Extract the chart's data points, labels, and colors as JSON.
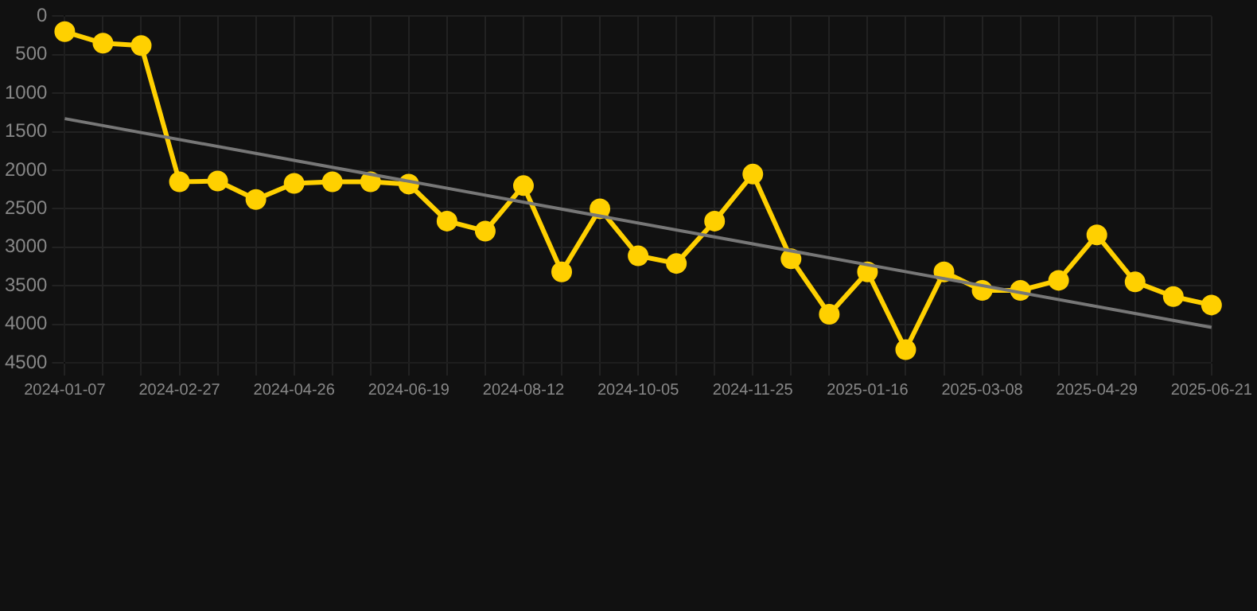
{
  "chart_data": {
    "type": "line",
    "categories": [
      "2024-01-07",
      null,
      null,
      "2024-02-27",
      null,
      null,
      "2024-04-26",
      null,
      null,
      "2024-06-19",
      null,
      null,
      "2024-08-12",
      null,
      null,
      "2024-10-05",
      null,
      null,
      "2024-11-25",
      null,
      null,
      "2025-01-16",
      null,
      null,
      "2025-03-08",
      null,
      null,
      "2025-04-29",
      null,
      null,
      "2025-06-21"
    ],
    "series": [
      {
        "color": "#ffd000",
        "values": [
          200,
          350,
          380,
          2150,
          2140,
          2380,
          2170,
          2150,
          2150,
          2180,
          2660,
          2790,
          2200,
          3320,
          2500,
          3110,
          3210,
          2660,
          2050,
          3150,
          3870,
          3320,
          4330,
          3320,
          3560,
          3560,
          3430,
          2840,
          3450,
          3640,
          3750
        ]
      },
      {
        "type": "line",
        "color": "#777777",
        "marker": "none",
        "values": [
          1330,
          null,
          null,
          null,
          null,
          null,
          null,
          null,
          null,
          null,
          null,
          null,
          null,
          null,
          null,
          null,
          null,
          null,
          null,
          null,
          null,
          null,
          null,
          null,
          null,
          null,
          null,
          null,
          null,
          null,
          4040
        ]
      }
    ],
    "ylim": [
      4500,
      0
    ],
    "yticks": [
      0,
      500,
      1000,
      1500,
      2000,
      2500,
      3000,
      3500,
      4000,
      4500
    ],
    "grid": true,
    "marker": "circle",
    "legend": false
  }
}
